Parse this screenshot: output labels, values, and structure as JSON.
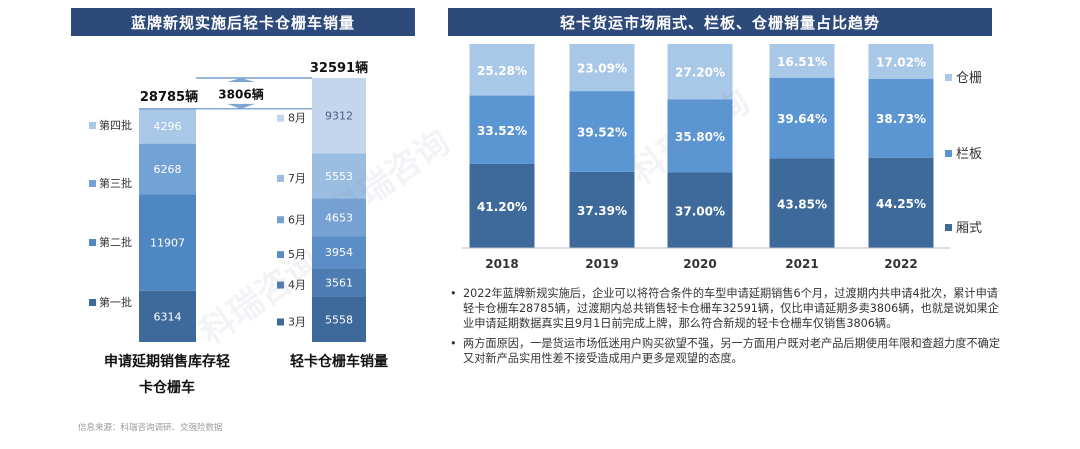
{
  "left": {
    "title": "蓝牌新规实施后轻卡仓栅车销量",
    "total_label": "28785辆",
    "diff_label": "3806辆",
    "total2_label": "32591辆",
    "bar1_caption": "申请延期销售库存轻卡仓栅车",
    "bar2_caption": "轻卡仓栅车销量",
    "legend": [
      "第四批",
      "第三批",
      "第二批",
      "第一批"
    ]
  },
  "right": {
    "title": "轻卡货运市场厢式、栏板、仓栅销量占比趋势",
    "bullets": [
      "2022年蓝牌新规实施后，企业可以将符合条件的车型申请延期销售6个月，过渡期内共申请4批次，累计申请轻卡仓栅车28785辆，过渡期内总共销售轻卡仓栅车32591辆，仅比申请延期多卖3806辆，也就是说如果企业申请延期数据真实且9月1日前完成上牌，那么符合新规的轻卡仓栅车仅销售3806辆。",
      "两方面原因，一是货运市场低迷用户购买欲望不强，另一方面用户既对老产品后期使用年限和查超力度不确定又对新产品实用性差不接受造成用户更多是观望的态度。"
    ],
    "bullet_char": "•"
  },
  "source": "信息来源：科瑞咨询调研、交强险数据",
  "watermark": "科瑞咨询",
  "chart_data": [
    {
      "type": "bar",
      "stacked": true,
      "title": "蓝牌新规实施后轻卡仓栅车销量",
      "categories": [
        "申请延期销售库存轻卡仓栅车",
        "轻卡仓栅车销量"
      ],
      "bar1": {
        "total": 28785,
        "segments": [
          {
            "name": "第一批",
            "value": 6314,
            "color": "#3d6a9b"
          },
          {
            "name": "第二批",
            "value": 11907,
            "color": "#4f87c2"
          },
          {
            "name": "第三批",
            "value": 6268,
            "color": "#73a3d4"
          },
          {
            "name": "第四批",
            "value": 4296,
            "color": "#a9c7e6"
          }
        ]
      },
      "bar2": {
        "total": 32591,
        "segments": [
          {
            "name": "3月",
            "value": 5558,
            "color": "#3d6a9b"
          },
          {
            "name": "4月",
            "value": 3561,
            "color": "#4d7cb3"
          },
          {
            "name": "5月",
            "value": 3954,
            "color": "#5b8ec7"
          },
          {
            "name": "6月",
            "value": 4653,
            "color": "#76a2d3"
          },
          {
            "name": "7月",
            "value": 5553,
            "color": "#9bbde2"
          },
          {
            "name": "8月",
            "value": 9312,
            "color": "#c3d6ee"
          }
        ]
      },
      "difference": 3806
    },
    {
      "type": "bar",
      "stacked": true,
      "percent": true,
      "title": "轻卡货运市场厢式、栏板、仓栅销量占比趋势",
      "categories": [
        "2018",
        "2019",
        "2020",
        "2021",
        "2022"
      ],
      "series": [
        {
          "name": "厢式",
          "values": [
            41.2,
            37.39,
            37.0,
            43.85,
            44.25
          ],
          "labels": [
            "41.20%",
            "37.39%",
            "37.00%",
            "43.85%",
            "44.25%"
          ],
          "color": "#3d6a9b"
        },
        {
          "name": "栏板",
          "values": [
            33.52,
            39.52,
            35.8,
            39.64,
            38.73
          ],
          "labels": [
            "33.52%",
            "39.52%",
            "35.80%",
            "39.64%",
            "38.73%"
          ],
          "color": "#5b96d2"
        },
        {
          "name": "仓栅",
          "values": [
            25.28,
            23.09,
            27.2,
            16.51,
            17.02
          ],
          "labels": [
            "25.28%",
            "23.09%",
            "27.20%",
            "16.51%",
            "17.02%"
          ],
          "color": "#a9c7e6"
        }
      ]
    }
  ]
}
